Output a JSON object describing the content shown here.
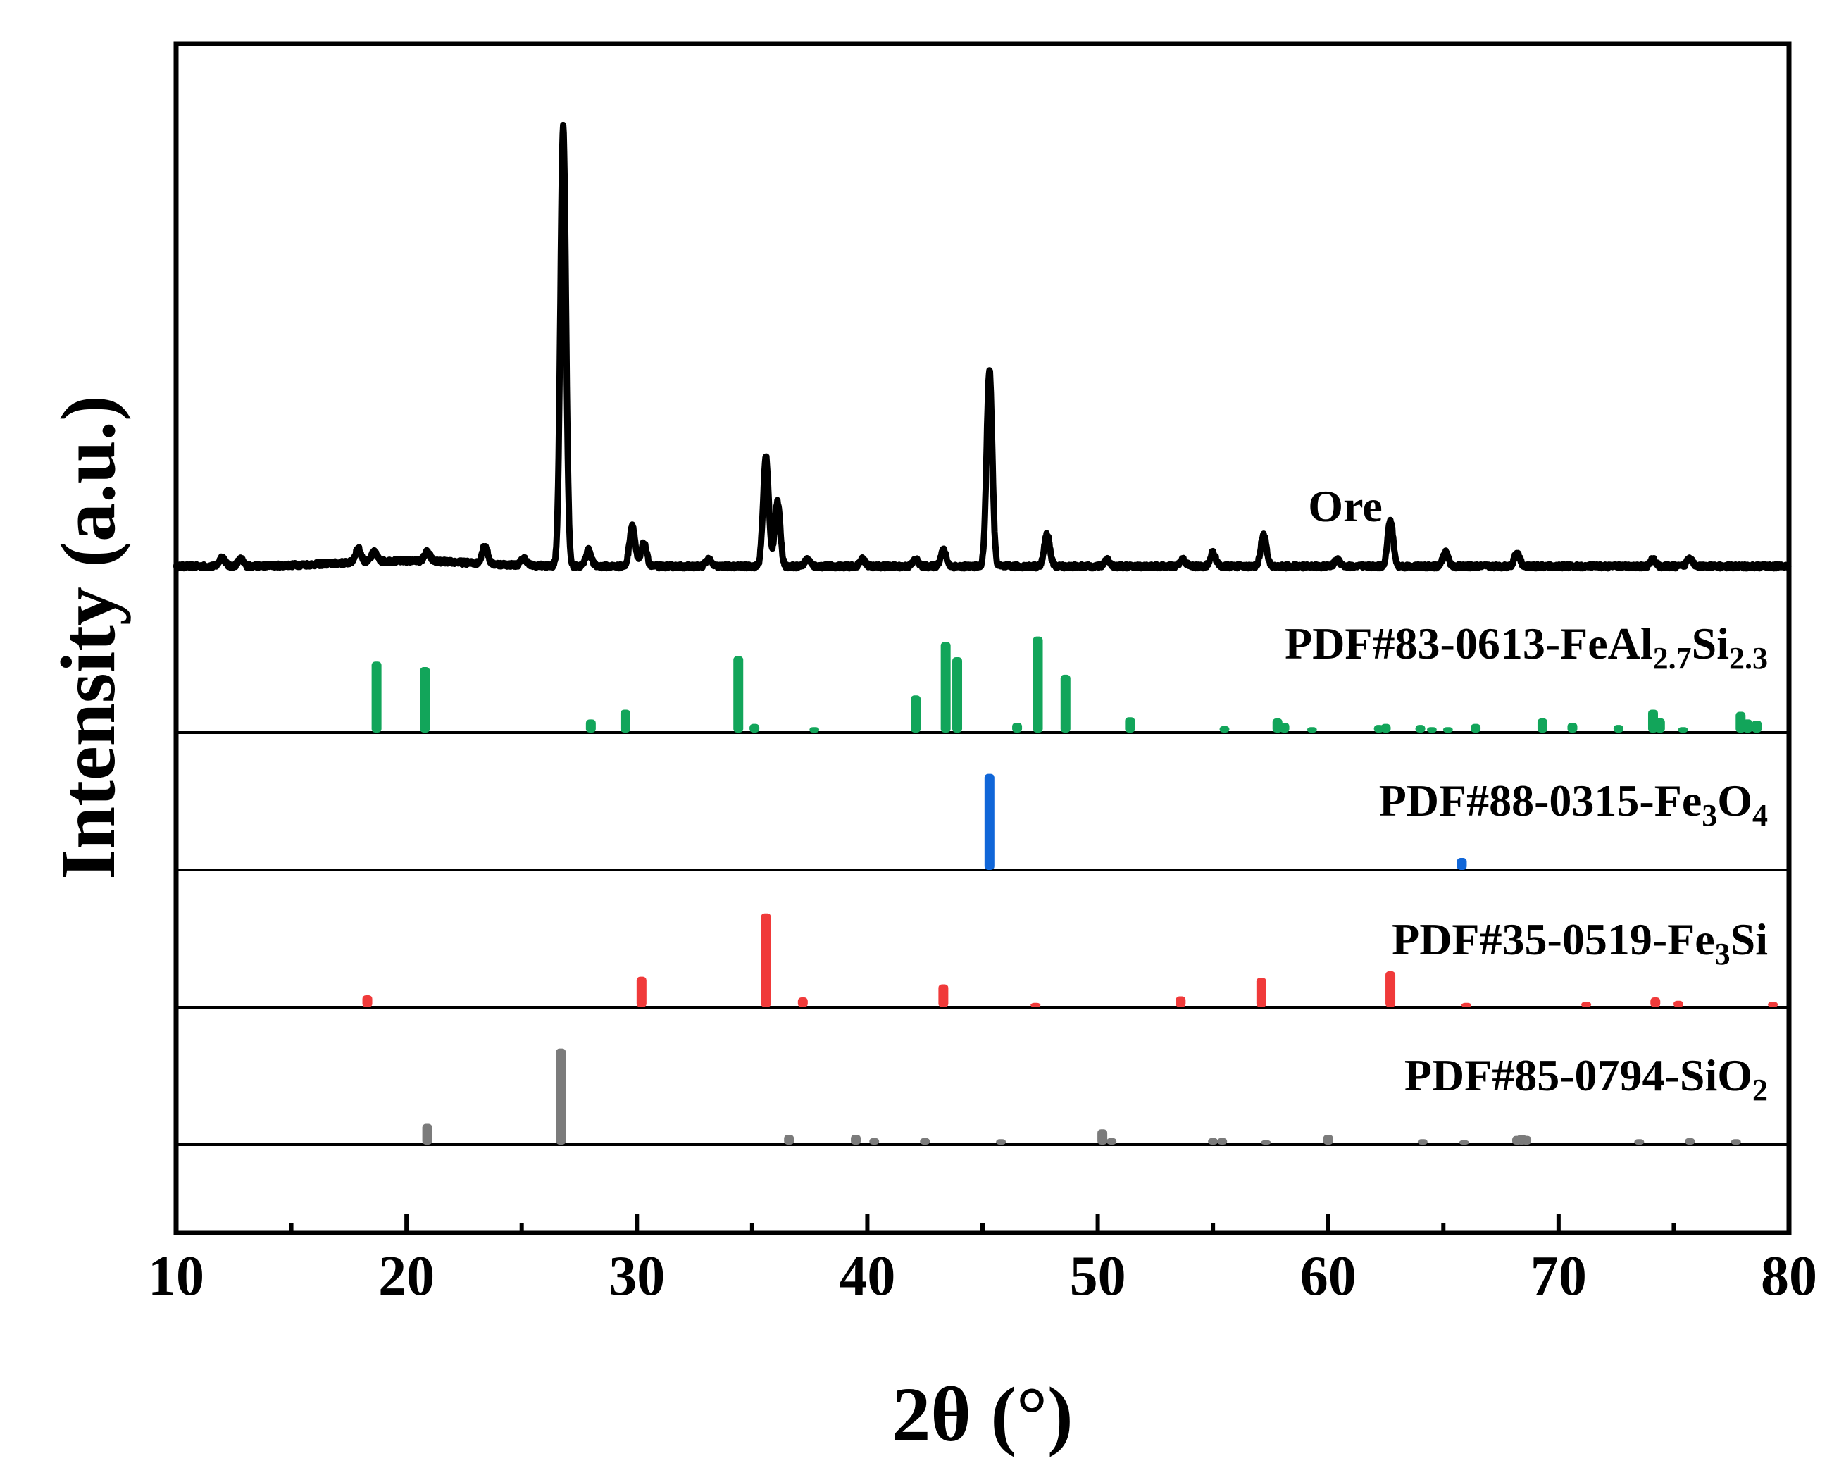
{
  "chart_data": {
    "type": "line",
    "xlabel": "2θ (°)",
    "ylabel": "Intensity (a.u.)",
    "xlim": [
      10,
      80
    ],
    "xticks": [
      10,
      20,
      30,
      40,
      50,
      60,
      70,
      80
    ],
    "series": [
      {
        "name": "Ore",
        "color": "#000000",
        "baseline": 4,
        "peaks": [
          {
            "x": 12.0,
            "h": 2
          },
          {
            "x": 12.8,
            "h": 1.5
          },
          {
            "x": 17.9,
            "h": 3
          },
          {
            "x": 18.6,
            "h": 2
          },
          {
            "x": 20.9,
            "h": 2
          },
          {
            "x": 23.4,
            "h": 4
          },
          {
            "x": 25.1,
            "h": 1.5
          },
          {
            "x": 26.8,
            "h": 96
          },
          {
            "x": 27.9,
            "h": 3.5
          },
          {
            "x": 29.8,
            "h": 9
          },
          {
            "x": 30.3,
            "h": 5
          },
          {
            "x": 33.1,
            "h": 1.5
          },
          {
            "x": 35.6,
            "h": 24
          },
          {
            "x": 36.1,
            "h": 14
          },
          {
            "x": 37.4,
            "h": 1.5
          },
          {
            "x": 39.8,
            "h": 1.5
          },
          {
            "x": 42.1,
            "h": 1.5
          },
          {
            "x": 43.3,
            "h": 3.5
          },
          {
            "x": 45.3,
            "h": 43
          },
          {
            "x": 47.8,
            "h": 7
          },
          {
            "x": 50.4,
            "h": 1.5
          },
          {
            "x": 53.7,
            "h": 1.5
          },
          {
            "x": 55.0,
            "h": 3
          },
          {
            "x": 57.2,
            "h": 7
          },
          {
            "x": 60.4,
            "h": 1.5
          },
          {
            "x": 62.7,
            "h": 10
          },
          {
            "x": 65.1,
            "h": 3
          },
          {
            "x": 68.2,
            "h": 3
          },
          {
            "x": 74.1,
            "h": 1.5
          },
          {
            "x": 75.7,
            "h": 2
          }
        ]
      },
      {
        "name": "PDF#83-0613-FeAl2.7Si2.3",
        "color": "#12a55a",
        "sticks": [
          {
            "x": 18.7,
            "h": 65
          },
          {
            "x": 20.8,
            "h": 60
          },
          {
            "x": 28.0,
            "h": 12
          },
          {
            "x": 29.5,
            "h": 21
          },
          {
            "x": 34.4,
            "h": 70
          },
          {
            "x": 35.1,
            "h": 8
          },
          {
            "x": 37.7,
            "h": 5
          },
          {
            "x": 42.1,
            "h": 34
          },
          {
            "x": 43.4,
            "h": 83
          },
          {
            "x": 43.9,
            "h": 69
          },
          {
            "x": 46.5,
            "h": 9
          },
          {
            "x": 47.4,
            "h": 88
          },
          {
            "x": 48.6,
            "h": 53
          },
          {
            "x": 51.4,
            "h": 14
          },
          {
            "x": 55.5,
            "h": 6
          },
          {
            "x": 57.8,
            "h": 13
          },
          {
            "x": 58.1,
            "h": 9
          },
          {
            "x": 59.3,
            "h": 5
          },
          {
            "x": 62.2,
            "h": 7
          },
          {
            "x": 62.5,
            "h": 8
          },
          {
            "x": 64.0,
            "h": 7
          },
          {
            "x": 64.5,
            "h": 5
          },
          {
            "x": 65.2,
            "h": 5
          },
          {
            "x": 66.4,
            "h": 8
          },
          {
            "x": 69.3,
            "h": 13
          },
          {
            "x": 70.6,
            "h": 9
          },
          {
            "x": 72.6,
            "h": 7
          },
          {
            "x": 74.1,
            "h": 21
          },
          {
            "x": 74.4,
            "h": 13
          },
          {
            "x": 75.4,
            "h": 5
          },
          {
            "x": 77.9,
            "h": 19
          },
          {
            "x": 78.2,
            "h": 12
          },
          {
            "x": 78.6,
            "h": 11
          }
        ]
      },
      {
        "name": "PDF#88-0315-Fe3O4",
        "color": "#1066d8",
        "sticks": [
          {
            "x": 45.3,
            "h": 88
          },
          {
            "x": 65.8,
            "h": 11
          }
        ]
      },
      {
        "name": "PDF#35-0519-Fe3Si",
        "color": "#f03a3a",
        "sticks": [
          {
            "x": 18.3,
            "h": 11
          },
          {
            "x": 30.2,
            "h": 28
          },
          {
            "x": 35.6,
            "h": 86
          },
          {
            "x": 37.2,
            "h": 9
          },
          {
            "x": 43.3,
            "h": 21
          },
          {
            "x": 47.3,
            "h": 4
          },
          {
            "x": 53.6,
            "h": 10
          },
          {
            "x": 57.1,
            "h": 27
          },
          {
            "x": 62.7,
            "h": 33
          },
          {
            "x": 66.0,
            "h": 4
          },
          {
            "x": 71.2,
            "h": 5
          },
          {
            "x": 74.2,
            "h": 9
          },
          {
            "x": 75.2,
            "h": 6
          },
          {
            "x": 79.3,
            "h": 5
          }
        ]
      },
      {
        "name": "PDF#85-0794-SiO2",
        "color": "#7b7b7b",
        "sticks": [
          {
            "x": 20.9,
            "h": 19
          },
          {
            "x": 26.7,
            "h": 88
          },
          {
            "x": 36.6,
            "h": 9
          },
          {
            "x": 39.5,
            "h": 9
          },
          {
            "x": 40.3,
            "h": 6
          },
          {
            "x": 42.5,
            "h": 6
          },
          {
            "x": 45.8,
            "h": 5
          },
          {
            "x": 50.2,
            "h": 14
          },
          {
            "x": 50.6,
            "h": 6
          },
          {
            "x": 55.0,
            "h": 6
          },
          {
            "x": 55.4,
            "h": 6
          },
          {
            "x": 57.3,
            "h": 4
          },
          {
            "x": 60.0,
            "h": 9
          },
          {
            "x": 64.1,
            "h": 5
          },
          {
            "x": 65.9,
            "h": 4
          },
          {
            "x": 68.2,
            "h": 8
          },
          {
            "x": 68.4,
            "h": 9
          },
          {
            "x": 68.6,
            "h": 8
          },
          {
            "x": 73.5,
            "h": 5
          },
          {
            "x": 75.7,
            "h": 6
          },
          {
            "x": 77.7,
            "h": 5
          }
        ]
      }
    ]
  },
  "labels": {
    "ore": "Ore",
    "pdf1": {
      "main": "PDF#83-0613-FeAl",
      "sub1": "2.7",
      "mid": "Si",
      "sub2": "2.3"
    },
    "pdf2": {
      "main": "PDF#88-0315-Fe",
      "sub1": "3",
      "mid": "O",
      "sub2": "4"
    },
    "pdf3": {
      "main": "PDF#35-0519-Fe",
      "sub1": "3",
      "mid": "Si"
    },
    "pdf4": {
      "main": "PDF#85-0794-SiO",
      "sub1": "2"
    }
  }
}
